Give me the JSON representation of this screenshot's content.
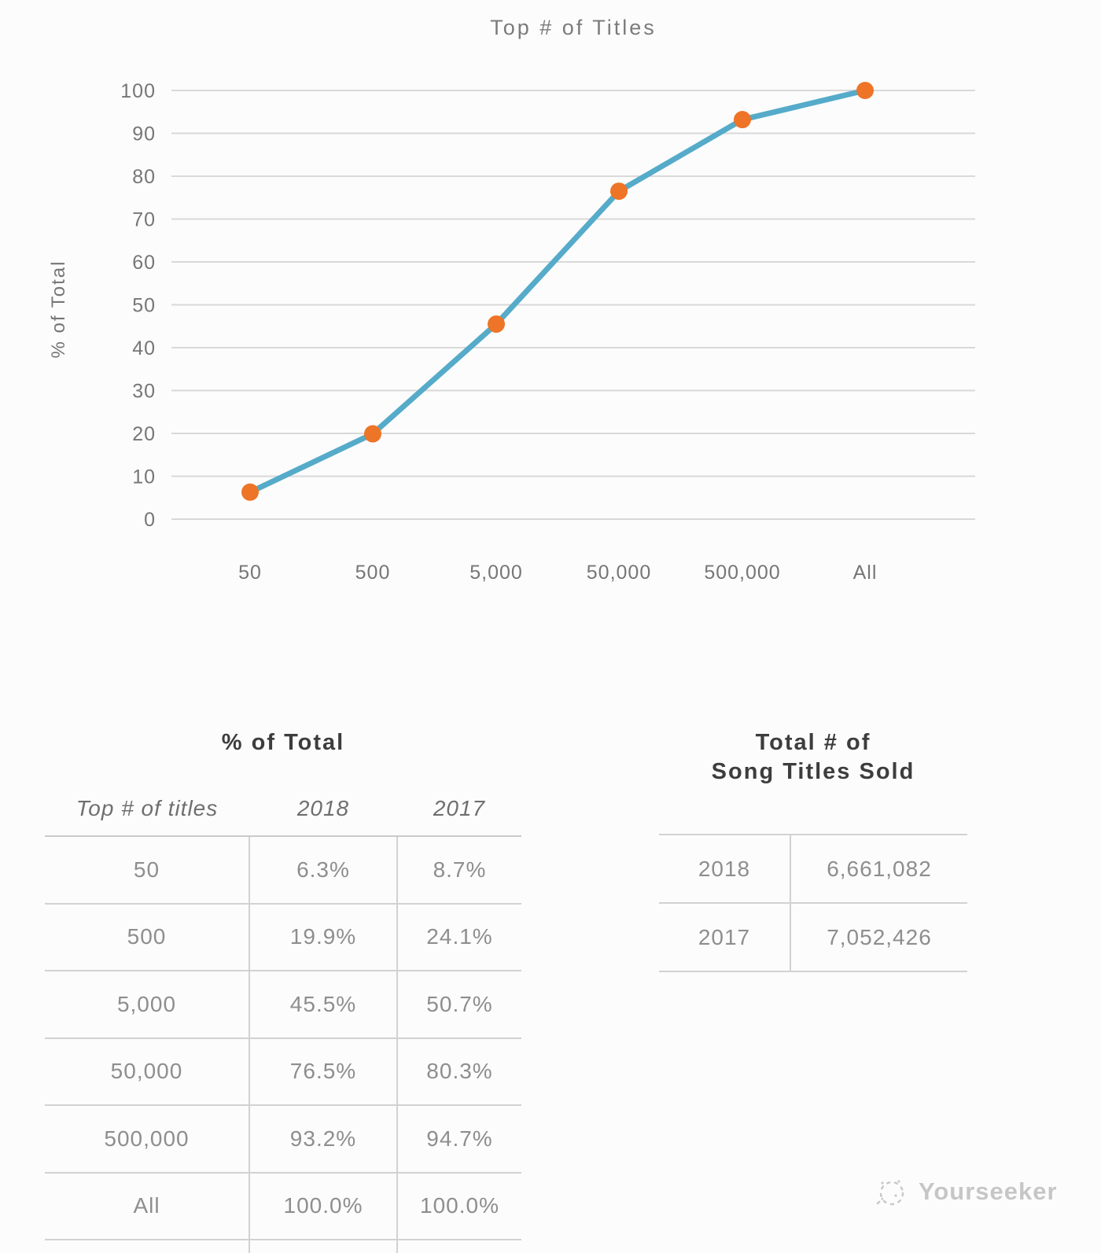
{
  "chart": {
    "title": "Top # of Titles",
    "ylabel": "% of Total"
  },
  "chart_data": {
    "type": "line",
    "title": "Top # of Titles",
    "xlabel": "",
    "ylabel": "% of Total",
    "categories": [
      "50",
      "500",
      "5,000",
      "50,000",
      "500,000",
      "All"
    ],
    "series": [
      {
        "name": "2018",
        "values": [
          6.3,
          19.9,
          45.5,
          76.5,
          93.2,
          100.0
        ]
      }
    ],
    "ylim": [
      0,
      100
    ],
    "ytick_step": 10,
    "grid": "horizontal",
    "legend": "none",
    "line_color": "#55abc9",
    "marker_color": "#ee7428"
  },
  "percent_table": {
    "title": "% of Total",
    "columns": [
      "Top # of titles",
      "2018",
      "2017"
    ],
    "rows": [
      [
        "50",
        "6.3%",
        "8.7%"
      ],
      [
        "500",
        "19.9%",
        "24.1%"
      ],
      [
        "5,000",
        "45.5%",
        "50.7%"
      ],
      [
        "50,000",
        "76.5%",
        "80.3%"
      ],
      [
        "500,000",
        "93.2%",
        "94.7%"
      ],
      [
        "All",
        "100.0%",
        "100.0%"
      ]
    ]
  },
  "totals_table": {
    "title_line1": "Total # of",
    "title_line2": "Song Titles Sold",
    "rows": [
      [
        "2018",
        "6,661,082"
      ],
      [
        "2017",
        "7,052,426"
      ]
    ]
  },
  "watermark": {
    "text": "Yourseeker"
  }
}
